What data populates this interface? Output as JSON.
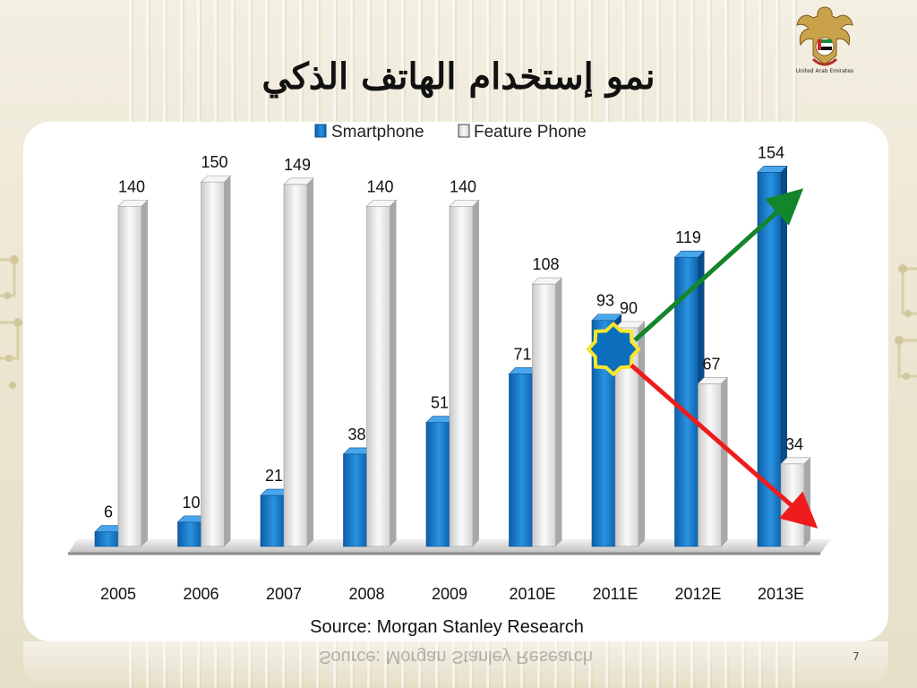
{
  "slide": {
    "title": "نمو إستخدام الهاتف الذكي",
    "emblem_caption": "United Arab Emirates",
    "page_number": "7"
  },
  "colors": {
    "smartphone": "#1a7fd0",
    "feature_phone": "#e9e9e9",
    "up_arrow": "#13852a",
    "down_arrow": "#ee1c1c",
    "crossover_star": "#f7e62a"
  },
  "chart_data": {
    "type": "bar",
    "categories": [
      "2005",
      "2006",
      "2007",
      "2008",
      "2009",
      "2010E",
      "2011E",
      "2012E",
      "2013E"
    ],
    "series": [
      {
        "name": "Smartphone",
        "values": [
          6,
          10,
          21,
          38,
          51,
          71,
          93,
          119,
          154
        ]
      },
      {
        "name": "Feature Phone",
        "values": [
          140,
          150,
          149,
          140,
          140,
          108,
          90,
          67,
          34
        ]
      }
    ],
    "ylim": [
      0,
      160
    ],
    "grid": false,
    "legend_position": "top",
    "source": "Source: Morgan Stanley Research"
  }
}
